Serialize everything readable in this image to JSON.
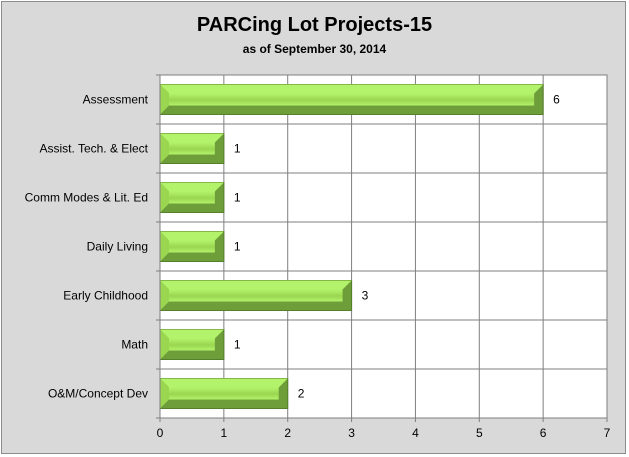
{
  "chart_data": {
    "type": "bar",
    "orientation": "horizontal",
    "title": "PARCing Lot Projects-15",
    "subtitle": "as of September 30, 2014",
    "categories": [
      "Assessment",
      "Assist. Tech. & Elect",
      "Comm Modes & Lit. Ed",
      "Daily Living",
      "Early Childhood",
      "Math",
      "O&M/Concept Dev"
    ],
    "values": [
      6,
      1,
      1,
      1,
      3,
      1,
      2
    ],
    "data_labels": [
      "6",
      "1",
      "1",
      "1",
      "3",
      "1",
      "2"
    ],
    "xlim": [
      0,
      7
    ],
    "xticks": [
      "0",
      "1",
      "2",
      "3",
      "4",
      "5",
      "6",
      "7"
    ],
    "grid": true,
    "legend": "none",
    "colors": {
      "bar_light": "#b3f36b",
      "bar_mid": "#9ad650",
      "bar_dark": "#6e9e3a",
      "bar_edge": "#557f2a",
      "plot_bg": "#ffffff",
      "chart_bg": "#d9d9d9",
      "gridline": "#7f7f7f"
    }
  }
}
